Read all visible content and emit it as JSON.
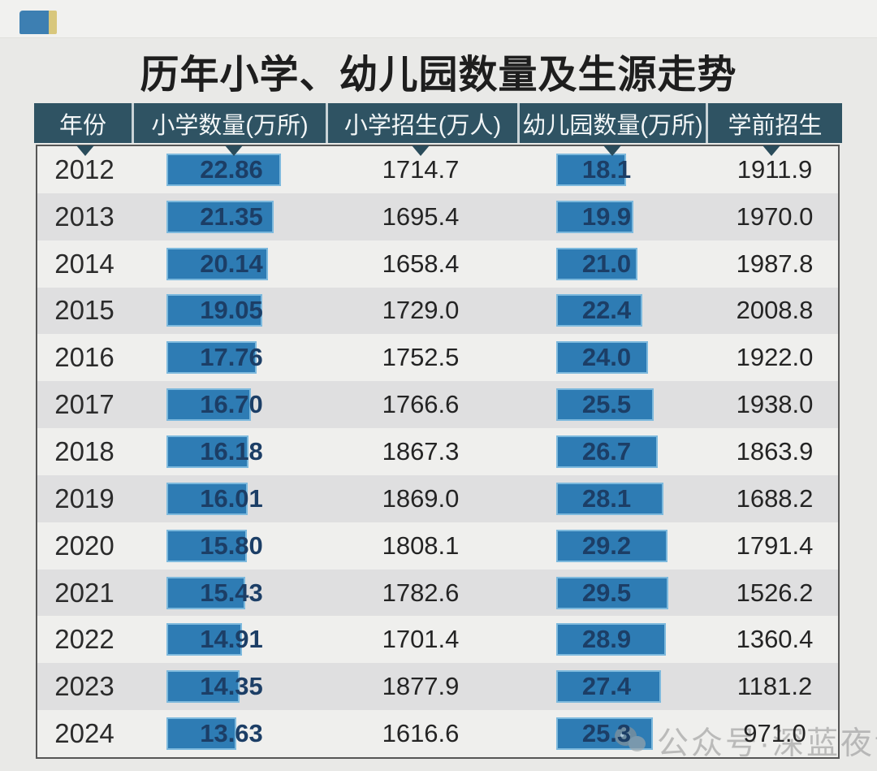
{
  "page": {
    "title": "历年小学、幼儿园数量及生源走势",
    "watermark_text": "公众号·深蓝夜读"
  },
  "table": {
    "headers": [
      "年份",
      "小学数量(万所)",
      "小学招生(万人)",
      "幼儿园数量(万所)",
      "学前招生"
    ],
    "rows": [
      {
        "year": "2012",
        "primary_schools": "22.86",
        "primary_enrollment": "1714.7",
        "kindergartens": "18.1",
        "preschool_enrollment": "1911.9"
      },
      {
        "year": "2013",
        "primary_schools": "21.35",
        "primary_enrollment": "1695.4",
        "kindergartens": "19.9",
        "preschool_enrollment": "1970.0"
      },
      {
        "year": "2014",
        "primary_schools": "20.14",
        "primary_enrollment": "1658.4",
        "kindergartens": "21.0",
        "preschool_enrollment": "1987.8"
      },
      {
        "year": "2015",
        "primary_schools": "19.05",
        "primary_enrollment": "1729.0",
        "kindergartens": "22.4",
        "preschool_enrollment": "2008.8"
      },
      {
        "year": "2016",
        "primary_schools": "17.76",
        "primary_enrollment": "1752.5",
        "kindergartens": "24.0",
        "preschool_enrollment": "1922.0"
      },
      {
        "year": "2017",
        "primary_schools": "16.70",
        "primary_enrollment": "1766.6",
        "kindergartens": "25.5",
        "preschool_enrollment": "1938.0"
      },
      {
        "year": "2018",
        "primary_schools": "16.18",
        "primary_enrollment": "1867.3",
        "kindergartens": "26.7",
        "preschool_enrollment": "1863.9"
      },
      {
        "year": "2019",
        "primary_schools": "16.01",
        "primary_enrollment": "1869.0",
        "kindergartens": "28.1",
        "preschool_enrollment": "1688.2"
      },
      {
        "year": "2020",
        "primary_schools": "15.80",
        "primary_enrollment": "1808.1",
        "kindergartens": "29.2",
        "preschool_enrollment": "1791.4"
      },
      {
        "year": "2021",
        "primary_schools": "15.43",
        "primary_enrollment": "1782.6",
        "kindergartens": "29.5",
        "preschool_enrollment": "1526.2"
      },
      {
        "year": "2022",
        "primary_schools": "14.91",
        "primary_enrollment": "1701.4",
        "kindergartens": "28.9",
        "preschool_enrollment": "1360.4"
      },
      {
        "year": "2023",
        "primary_schools": "14.35",
        "primary_enrollment": "1877.9",
        "kindergartens": "27.4",
        "preschool_enrollment": "1181.2"
      },
      {
        "year": "2024",
        "primary_schools": "13.63",
        "primary_enrollment": "1616.6",
        "kindergartens": "25.3",
        "preschool_enrollment": "971.0"
      }
    ]
  },
  "colors": {
    "header_bg": "#2f5363",
    "header_text": "#f2f6f7",
    "bar_fill": "#2e7cb4",
    "bar_border": "#7db9dd",
    "bar_label": "#1c3e66",
    "row_light": "#efefed",
    "row_dark": "#dfdfe0",
    "background": "#e9e9e7"
  },
  "chart_data": {
    "type": "table",
    "title": "历年小学、幼儿园数量及生源走势",
    "note": "columns 小学数量 and 幼儿园数量 are rendered as horizontal bars with value labels; bars scale linearly from 0",
    "categories": [
      "2012",
      "2013",
      "2014",
      "2015",
      "2016",
      "2017",
      "2018",
      "2019",
      "2020",
      "2021",
      "2022",
      "2023",
      "2024"
    ],
    "series": [
      {
        "name": "小学数量(万所)",
        "display": "bar+label",
        "values": [
          22.86,
          21.35,
          20.14,
          19.05,
          17.76,
          16.7,
          16.18,
          16.01,
          15.8,
          15.43,
          14.91,
          14.35,
          13.63
        ]
      },
      {
        "name": "小学招生(万人)",
        "display": "text",
        "values": [
          1714.7,
          1695.4,
          1658.4,
          1729.0,
          1752.5,
          1766.6,
          1867.3,
          1869.0,
          1808.1,
          1782.6,
          1701.4,
          1877.9,
          1616.6
        ]
      },
      {
        "name": "幼儿园数量(万所)",
        "display": "bar+label",
        "values": [
          18.1,
          19.9,
          21.0,
          22.4,
          24.0,
          25.5,
          26.7,
          28.1,
          29.2,
          29.5,
          28.9,
          27.4,
          25.3
        ]
      },
      {
        "name": "学前招生",
        "display": "text",
        "values": [
          1911.9,
          1970.0,
          1987.8,
          2008.8,
          1922.0,
          1938.0,
          1863.9,
          1688.2,
          1791.4,
          1526.2,
          1360.4,
          1181.2,
          971.0
        ]
      }
    ]
  }
}
